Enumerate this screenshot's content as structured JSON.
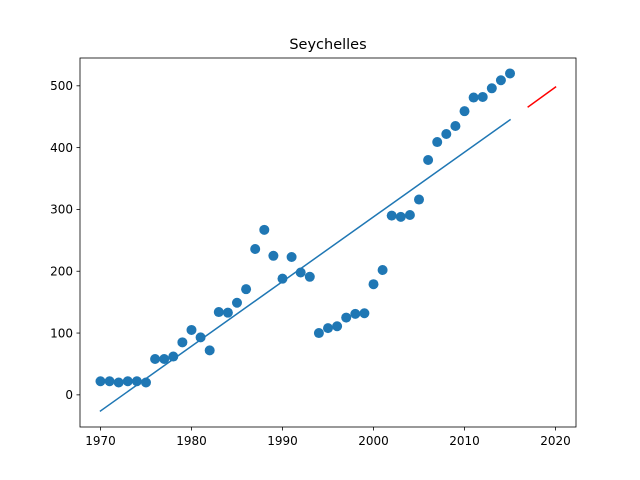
{
  "chart_data": {
    "type": "scatter",
    "title": "Seychelles",
    "xlabel": "",
    "ylabel": "",
    "xlim": [
      1967.75,
      2022.25
    ],
    "ylim": [
      -52,
      545
    ],
    "x_ticks": [
      1970,
      1980,
      1990,
      2000,
      2010,
      2020
    ],
    "y_ticks": [
      0,
      100,
      200,
      300,
      400,
      500
    ],
    "grid": false,
    "legend": "none",
    "colors": {
      "points": "#1f77b4",
      "fit": "#1f77b4",
      "forecast": "#ff0000"
    },
    "series": [
      {
        "type": "scatter",
        "points": [
          [
            1970,
            22
          ],
          [
            1971,
            22
          ],
          [
            1972,
            20
          ],
          [
            1973,
            22
          ],
          [
            1974,
            22
          ],
          [
            1975,
            20
          ],
          [
            1976,
            58
          ],
          [
            1977,
            58
          ],
          [
            1978,
            62
          ],
          [
            1979,
            85
          ],
          [
            1980,
            105
          ],
          [
            1981,
            93
          ],
          [
            1982,
            72
          ],
          [
            1983,
            134
          ],
          [
            1984,
            133
          ],
          [
            1985,
            149
          ],
          [
            1986,
            171
          ],
          [
            1987,
            236
          ],
          [
            1988,
            267
          ],
          [
            1989,
            225
          ],
          [
            1990,
            188
          ],
          [
            1991,
            223
          ],
          [
            1992,
            198
          ],
          [
            1993,
            191
          ],
          [
            1994,
            100
          ],
          [
            1995,
            108
          ],
          [
            1996,
            111
          ],
          [
            1997,
            125
          ],
          [
            1998,
            131
          ],
          [
            1999,
            132
          ],
          [
            2000,
            179
          ],
          [
            2001,
            202
          ],
          [
            2002,
            290
          ],
          [
            2003,
            288
          ],
          [
            2004,
            291
          ],
          [
            2005,
            316
          ],
          [
            2006,
            380
          ],
          [
            2007,
            409
          ],
          [
            2008,
            422
          ],
          [
            2009,
            435
          ],
          [
            2010,
            459
          ],
          [
            2011,
            481
          ],
          [
            2012,
            482
          ],
          [
            2013,
            496
          ],
          [
            2014,
            509
          ],
          [
            2015,
            520
          ]
        ]
      },
      {
        "type": "line",
        "x": [
          1970,
          2015
        ],
        "y": [
          -26,
          445
        ]
      },
      {
        "type": "line",
        "x": [
          2017,
          2020
        ],
        "y": [
          466,
          498
        ]
      }
    ]
  }
}
